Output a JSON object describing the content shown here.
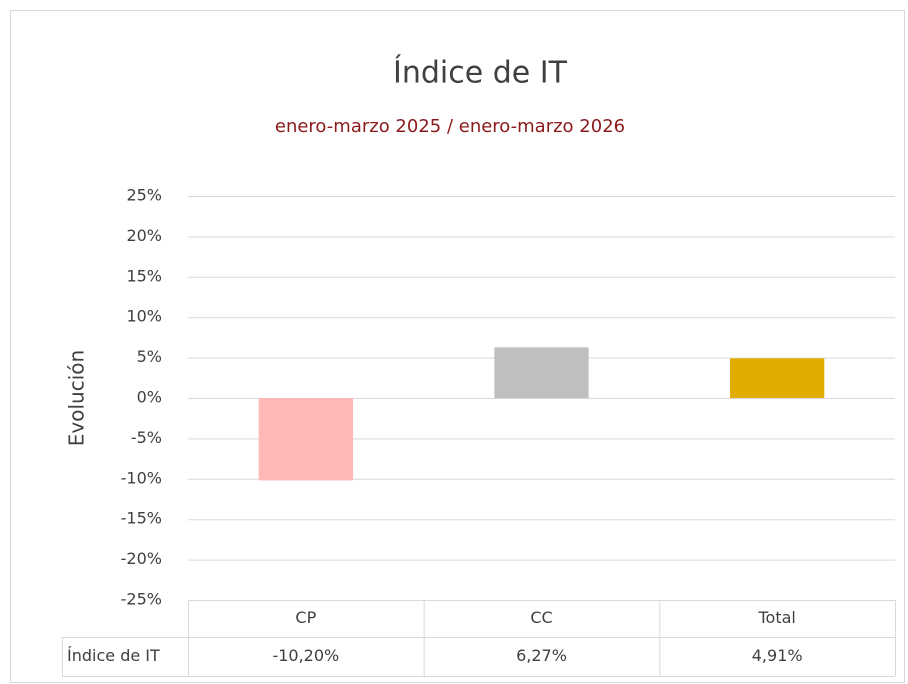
{
  "chart_data": {
    "type": "bar",
    "title": "Índice de IT",
    "subtitle": "enero-marzo 2025 / enero-marzo 2026",
    "y_label": "Evolución",
    "categories": [
      "CP",
      "CC",
      "Total"
    ],
    "series": [
      {
        "name": "Índice de IT",
        "colors": [
          "#ffb7b7",
          "#bfbfbf",
          "#e2ab00"
        ],
        "values": [
          -10.2,
          6.27,
          4.91
        ],
        "value_labels": [
          "-10,20%",
          "6,27%",
          "4,91%"
        ]
      }
    ],
    "ylim": [
      -25,
      25
    ],
    "yticks": [
      {
        "value": 25,
        "label": "25%"
      },
      {
        "value": 20,
        "label": "20%"
      },
      {
        "value": 15,
        "label": "15%"
      },
      {
        "value": 10,
        "label": "10%"
      },
      {
        "value": 5,
        "label": "5%"
      },
      {
        "value": 0,
        "label": "0%"
      },
      {
        "value": -5,
        "label": "-5%"
      },
      {
        "value": -10,
        "label": "-10%"
      },
      {
        "value": -15,
        "label": "-15%"
      },
      {
        "value": -20,
        "label": "-20%"
      },
      {
        "value": -25,
        "label": "-25%"
      }
    ],
    "grid": true,
    "data_table": true
  }
}
